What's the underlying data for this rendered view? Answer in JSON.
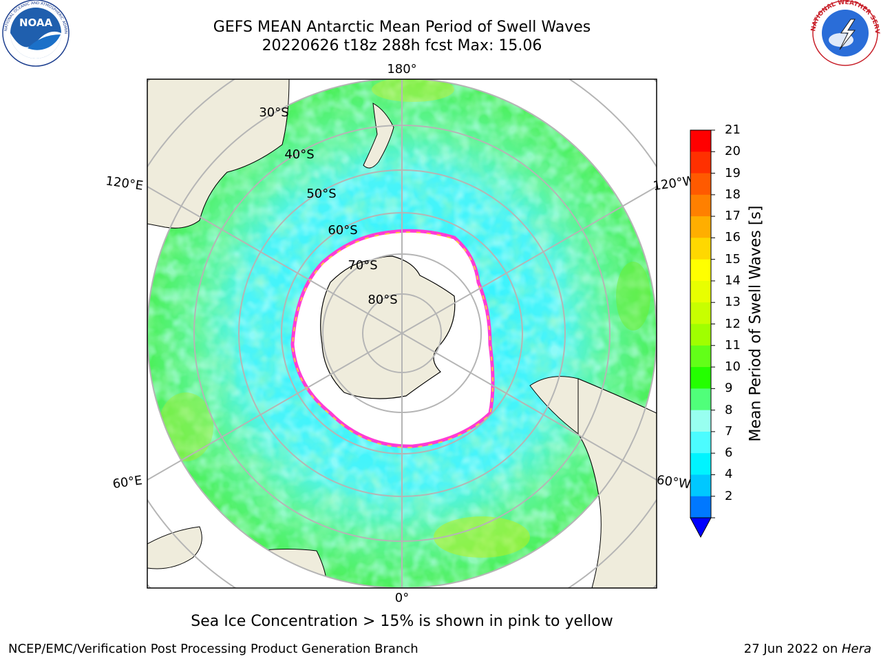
{
  "header": {
    "title_line1": "GEFS MEAN Antarctic Mean Period of Swell Waves",
    "title_line2": "20220626 t18z 288h fcst   Max: 15.06"
  },
  "logos": {
    "left": {
      "name": "noaa-logo",
      "text": "NOAA",
      "ring_text": "NATIONAL OCEANIC AND ATMOSPHERIC ADMINISTRATION • U.S. DEPARTMENT OF COMMERCE"
    },
    "right": {
      "name": "nws-logo",
      "ring_text": "NATIONAL WEATHER SERVICE"
    }
  },
  "map": {
    "projection": "south-polar-stereographic",
    "longitude_labels": [
      "180°",
      "120°E",
      "120°W",
      "60°E",
      "60°W",
      "0°"
    ],
    "latitude_labels": [
      "30°S",
      "40°S",
      "50°S",
      "60°S",
      "70°S",
      "80°S"
    ],
    "colors": {
      "land": "#efecdc",
      "ice_free": "#ffffff",
      "gridline": "#b5b5b5"
    }
  },
  "colorbar": {
    "label": "Mean Period of Swell Waves [s]",
    "ticks": [
      "21",
      "20",
      "19",
      "18",
      "17",
      "16",
      "15",
      "14",
      "13",
      "12",
      "11",
      "10",
      "9",
      "8",
      "7",
      "6",
      "4",
      "2"
    ],
    "colors": [
      "#ff0000",
      "#ff3000",
      "#ff5a00",
      "#ff8000",
      "#ffae00",
      "#ffd800",
      "#ffff00",
      "#e8ff00",
      "#c8ff00",
      "#a0ff00",
      "#62ff18",
      "#24ff00",
      "#50ff7a",
      "#98fff0",
      "#4cfcff",
      "#00f4ff",
      "#00c8ff",
      "#0078ff"
    ],
    "extend_color": "#0000ff"
  },
  "footer": {
    "note": "Sea Ice Concentration > 15% is shown in pink to yellow",
    "left": "NCEP/EMC/Verification Post Processing Product Generation Branch",
    "right_prefix": "27 Jun 2022 on ",
    "right_host": "Hera"
  }
}
